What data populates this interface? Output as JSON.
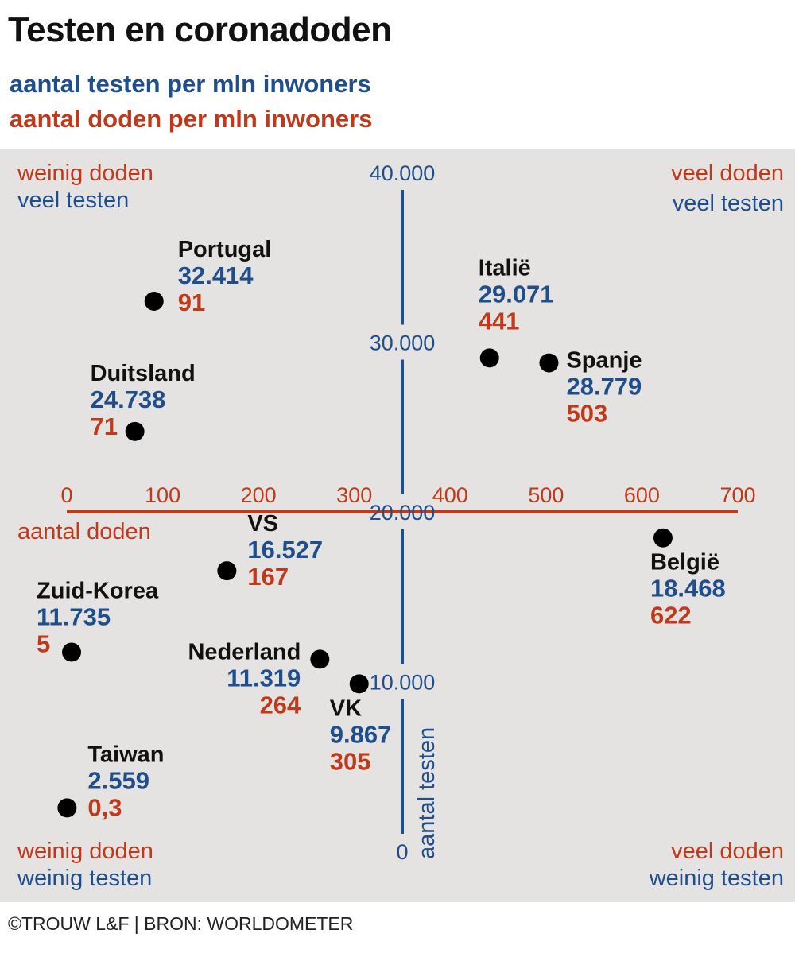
{
  "title": "Testen en coronadoden",
  "subtitles": {
    "tests": "aantal testen per mln inwoners",
    "deaths": "aantal doden per mln inwoners"
  },
  "footer": "©TROUW L&F | BRON: WORLDOMETER",
  "colors": {
    "background": "#e5e3e1",
    "tests": "#1f4e8c",
    "deaths": "#c0391b",
    "points": "#000000",
    "text": "#111111"
  },
  "chart_data": {
    "type": "scatter",
    "title": "Testen en coronadoden",
    "xlabel": "aantal doden",
    "ylabel": "aantal testen",
    "xlim": [
      0,
      700
    ],
    "ylim": [
      0,
      40000
    ],
    "x_ticks": [
      {
        "value": 0,
        "label": "0"
      },
      {
        "value": 100,
        "label": "100"
      },
      {
        "value": 200,
        "label": "200"
      },
      {
        "value": 300,
        "label": "300"
      },
      {
        "value": 400,
        "label": "400"
      },
      {
        "value": 500,
        "label": "500"
      },
      {
        "value": 600,
        "label": "600"
      },
      {
        "value": 700,
        "label": "700"
      }
    ],
    "y_ticks": [
      {
        "value": 0,
        "label": "0"
      },
      {
        "value": 10000,
        "label": "10.000"
      },
      {
        "value": 20000,
        "label": "20.000"
      },
      {
        "value": 30000,
        "label": "30.000"
      },
      {
        "value": 40000,
        "label": "40.000"
      }
    ],
    "x_cross": 350,
    "y_cross": 20000,
    "grid": false,
    "quadrants": {
      "top_left": [
        "weinig doden",
        "veel testen"
      ],
      "top_right": [
        "veel doden",
        "veel testen"
      ],
      "bottom_left": [
        "weinig doden",
        "weinig testen"
      ],
      "bottom_right": [
        "veel doden",
        "weinig testen"
      ]
    },
    "points": [
      {
        "name": "Portugal",
        "tests_label": "32.414",
        "deaths_label": "91",
        "x": 91,
        "y": 32414
      },
      {
        "name": "Italië",
        "tests_label": "29.071",
        "deaths_label": "441",
        "x": 441,
        "y": 29071
      },
      {
        "name": "Spanje",
        "tests_label": "28.779",
        "deaths_label": "503",
        "x": 503,
        "y": 28779
      },
      {
        "name": "Duitsland",
        "tests_label": "24.738",
        "deaths_label": "71",
        "x": 71,
        "y": 24738
      },
      {
        "name": "België",
        "tests_label": "18.468",
        "deaths_label": "622",
        "x": 622,
        "y": 18468
      },
      {
        "name": "VS",
        "tests_label": "16.527",
        "deaths_label": "167",
        "x": 167,
        "y": 16527
      },
      {
        "name": "Zuid-Korea",
        "tests_label": "11.735",
        "deaths_label": "5",
        "x": 5,
        "y": 11735
      },
      {
        "name": "Nederland",
        "tests_label": "11.319",
        "deaths_label": "264",
        "x": 264,
        "y": 11319
      },
      {
        "name": "VK",
        "tests_label": "9.867",
        "deaths_label": "305",
        "x": 305,
        "y": 9867
      },
      {
        "name": "Taiwan",
        "tests_label": "2.559",
        "deaths_label": "0,3",
        "x": 0.3,
        "y": 2559
      }
    ]
  }
}
